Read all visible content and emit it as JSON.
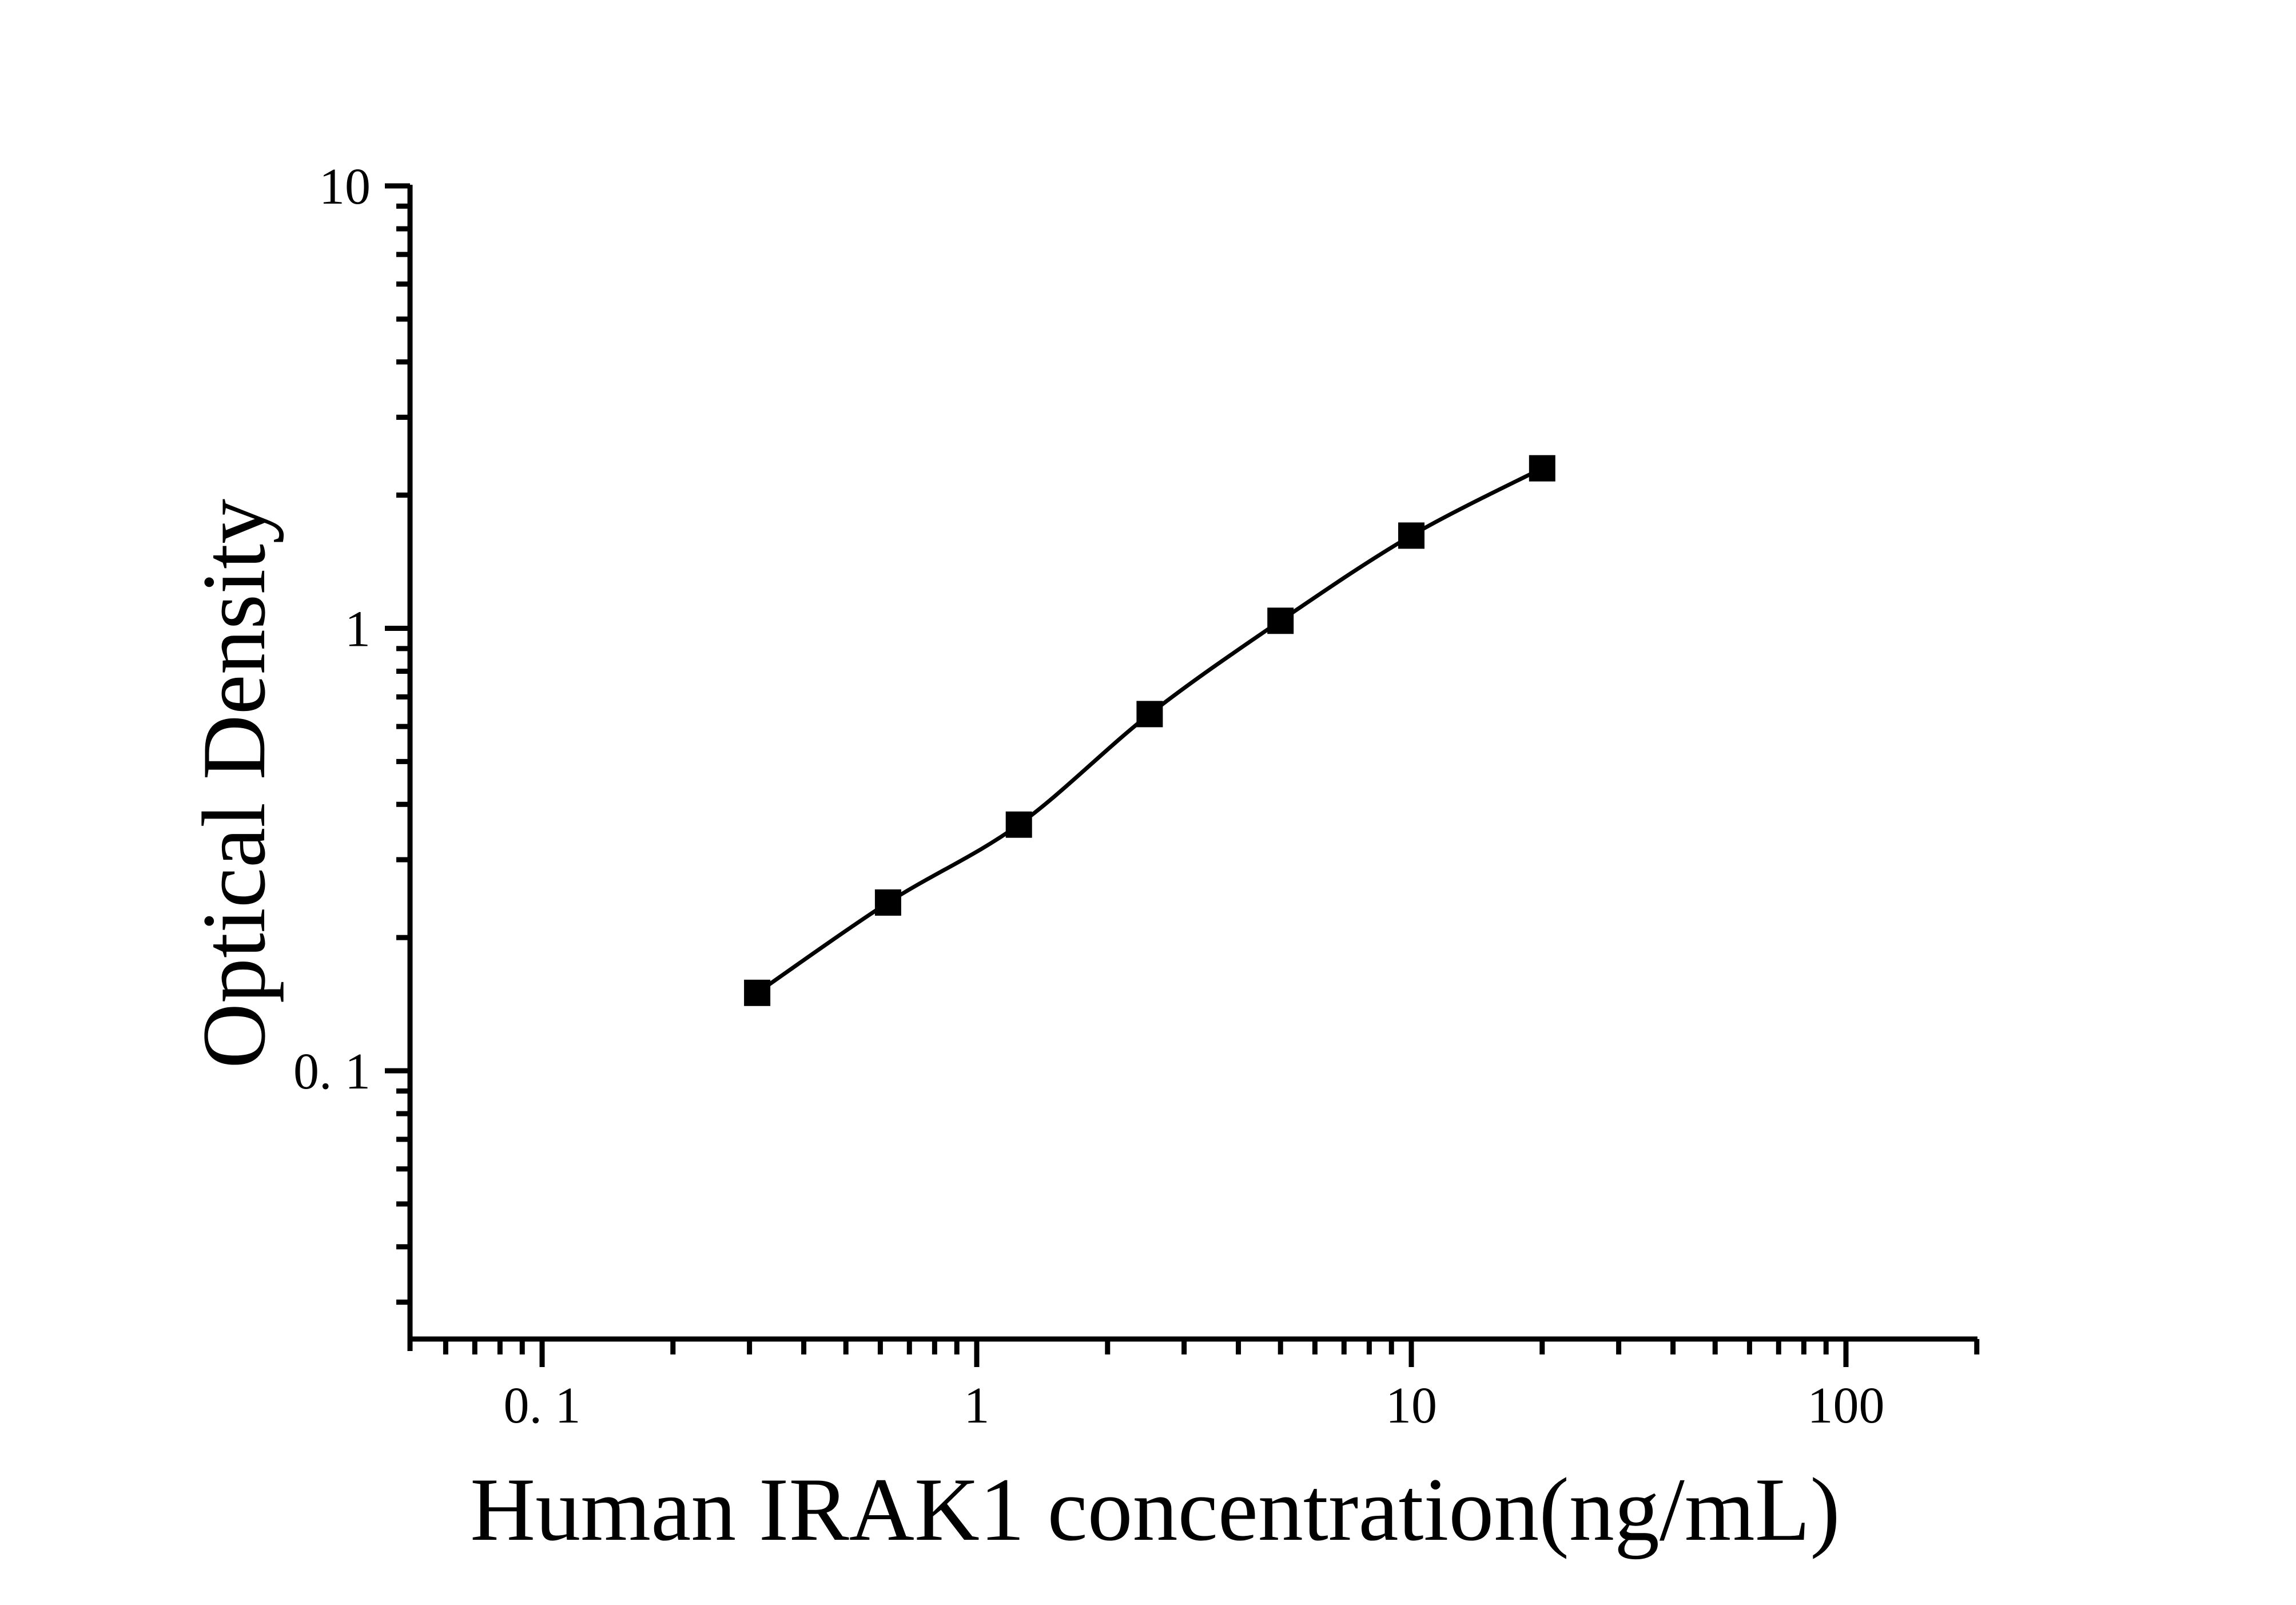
{
  "figure": {
    "background_color": "#ffffff",
    "ink_color": "#000000"
  },
  "chart_data": {
    "type": "line",
    "subtype": "scatter-with-fit-curve",
    "title": "",
    "xlabel": "Human IRAK1 concentration(ng/mL)",
    "ylabel": "Optical Density",
    "x_scale": "log",
    "y_scale": "log",
    "xlim": [
      0.049,
      200
    ],
    "ylim": [
      0.025,
      10
    ],
    "grid": false,
    "legend_position": "none",
    "marker": "filled-square",
    "marker_color": "#000000",
    "line_color": "#000000",
    "line_style": "solid",
    "x": [
      0.3125,
      0.625,
      1.25,
      2.5,
      5,
      10,
      20
    ],
    "y": [
      0.15,
      0.24,
      0.36,
      0.64,
      1.04,
      1.62,
      2.3
    ],
    "x_ticks": [
      {
        "value": 0.1,
        "label": "0. 1"
      },
      {
        "value": 1,
        "label": "1"
      },
      {
        "value": 10,
        "label": "10"
      },
      {
        "value": 100,
        "label": "100"
      }
    ],
    "y_ticks": [
      {
        "value": 10,
        "label": "10"
      },
      {
        "value": 1,
        "label": "1"
      },
      {
        "value": 0.1,
        "label": "0. 1"
      }
    ]
  }
}
